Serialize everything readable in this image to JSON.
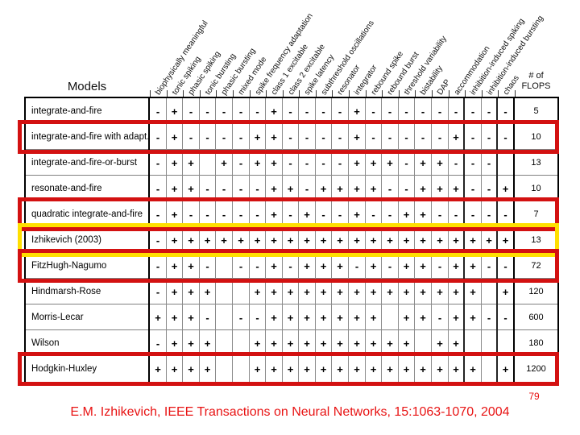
{
  "slide": {
    "models_label": "Models",
    "page_number": "79",
    "caption": "E.M. Izhikevich, IEEE Transactions on Neural Networks, 15:1063-1070, 2004",
    "caption_color": "#e81313"
  },
  "chart_data": {
    "type": "table",
    "title": "Models",
    "flops_column_lines": [
      "# of",
      "FLOPS"
    ],
    "columns": [
      "biophysically meaningful",
      "tonic spiking",
      "phasic spiking",
      "tonic bursting",
      "phasic bursting",
      "mixed mode",
      "spike frequency adaptation",
      "class 1 excitable",
      "class 2 excitable",
      "spike latency",
      "subthreshold oscillations",
      "resonator",
      "integrator",
      "rebound spike",
      "rebound burst",
      "threshold variability",
      "bistability",
      "DAP",
      "accommodation",
      "inhibition-induced spiking",
      "inhibition-induced bursting",
      "chaos"
    ],
    "highlight_colors": {
      "red": "#d31111",
      "yellow": "#ffdf00"
    },
    "rows": [
      {
        "model": "integrate-and-fire",
        "values": [
          "-",
          "+",
          "-",
          "-",
          "-",
          "-",
          "-",
          "+",
          "-",
          "-",
          "-",
          "-",
          "+",
          "-",
          "-",
          "-",
          "-",
          "-",
          "-",
          "-",
          "-",
          "-"
        ],
        "flops": "5",
        "highlight": "none"
      },
      {
        "model": "integrate-and-fire with adapt.",
        "values": [
          "-",
          "+",
          "-",
          "-",
          "-",
          "-",
          "+",
          "+",
          "-",
          "-",
          "-",
          "-",
          "+",
          "-",
          "-",
          "-",
          "-",
          "-",
          "+",
          "-",
          "-",
          "-"
        ],
        "flops": "10",
        "highlight": "red"
      },
      {
        "model": "integrate-and-fire-or-burst",
        "values": [
          "-",
          "+",
          "+",
          "",
          "+",
          "-",
          "+",
          "+",
          "-",
          "-",
          "-",
          "-",
          "+",
          "+",
          "+",
          "-",
          "+",
          "+",
          "-",
          "-",
          "-",
          ""
        ],
        "flops": "13",
        "highlight": "none"
      },
      {
        "model": "resonate-and-fire",
        "values": [
          "-",
          "+",
          "+",
          "-",
          "-",
          "-",
          "-",
          "+",
          "+",
          "-",
          "+",
          "+",
          "+",
          "+",
          "-",
          "-",
          "+",
          "+",
          "+",
          "-",
          "-",
          "+"
        ],
        "flops": "10",
        "highlight": "none"
      },
      {
        "model": "quadratic integrate-and-fire",
        "values": [
          "-",
          "+",
          "-",
          "-",
          "-",
          "-",
          "-",
          "+",
          "-",
          "+",
          "-",
          "-",
          "+",
          "-",
          "-",
          "+",
          "+",
          "-",
          "-",
          "-",
          "-",
          "-"
        ],
        "flops": "7",
        "highlight": "red"
      },
      {
        "model": "Izhikevich (2003)",
        "values": [
          "-",
          "+",
          "+",
          "+",
          "+",
          "+",
          "+",
          "+",
          "+",
          "+",
          "+",
          "+",
          "+",
          "+",
          "+",
          "+",
          "+",
          "+",
          "+",
          "+",
          "+",
          "+"
        ],
        "flops": "13",
        "highlight": "yellow"
      },
      {
        "model": "FitzHugh-Nagumo",
        "values": [
          "-",
          "+",
          "+",
          "-",
          "",
          "-",
          "-",
          "+",
          "-",
          "+",
          "+",
          "+",
          "-",
          "+",
          "-",
          "+",
          "+",
          "-",
          "+",
          "+",
          "-",
          "-"
        ],
        "flops": "72",
        "highlight": "red"
      },
      {
        "model": "Hindmarsh-Rose",
        "values": [
          "-",
          "+",
          "+",
          "+",
          "",
          "",
          "+",
          "+",
          "+",
          "+",
          "+",
          "+",
          "+",
          "+",
          "+",
          "+",
          "+",
          "+",
          "+",
          "+",
          "",
          "+"
        ],
        "flops": "120",
        "highlight": "none"
      },
      {
        "model": "Morris-Lecar",
        "values": [
          "+",
          "+",
          "+",
          "-",
          "",
          "-",
          "-",
          "+",
          "+",
          "+",
          "+",
          "+",
          "+",
          "+",
          "",
          "+",
          "+",
          "-",
          "+",
          "+",
          "-",
          "-"
        ],
        "flops": "600",
        "highlight": "none"
      },
      {
        "model": "Wilson",
        "values": [
          "-",
          "+",
          "+",
          "+",
          "",
          "",
          "+",
          "+",
          "+",
          "+",
          "+",
          "+",
          "+",
          "+",
          "+",
          "+",
          "",
          "+",
          "+",
          "",
          "",
          ""
        ],
        "flops": "180",
        "highlight": "none"
      },
      {
        "model": "Hodgkin-Huxley",
        "values": [
          "+",
          "+",
          "+",
          "+",
          "",
          "",
          "+",
          "+",
          "+",
          "+",
          "+",
          "+",
          "+",
          "+",
          "+",
          "+",
          "+",
          "+",
          "+",
          "+",
          "",
          "+"
        ],
        "flops": "1200",
        "highlight": "red"
      }
    ]
  }
}
